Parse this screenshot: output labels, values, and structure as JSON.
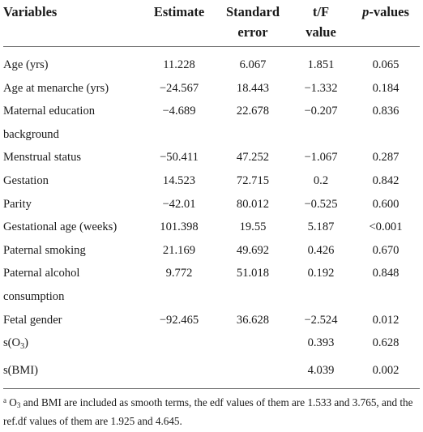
{
  "header": {
    "variables": "Variables",
    "estimate": "Estimate",
    "se_line1": "Standard",
    "se_line2": "error",
    "tf_line1": "t/F",
    "tf_line2": "value",
    "p_italic": "p",
    "p_rest": "-values"
  },
  "rows": [
    {
      "variable": "Age (yrs)",
      "estimate": "11.228",
      "se": "6.067",
      "tf": "1.851",
      "p": "0.065"
    },
    {
      "variable": "Age at menarche (yrs)",
      "estimate": "−24.567",
      "se": "18.443",
      "tf": "−1.332",
      "p": "0.184"
    },
    {
      "variable": "Maternal education",
      "variable_line2": "background",
      "estimate": "−4.689",
      "se": "22.678",
      "tf": "−0.207",
      "p": "0.836"
    },
    {
      "variable": "Menstrual status",
      "estimate": "−50.411",
      "se": "47.252",
      "tf": "−1.067",
      "p": "0.287"
    },
    {
      "variable": "Gestation",
      "estimate": "14.523",
      "se": "72.715",
      "tf": "0.2",
      "p": "0.842"
    },
    {
      "variable": "Parity",
      "estimate": "−42.01",
      "se": "80.012",
      "tf": "−0.525",
      "p": "0.600"
    },
    {
      "variable": "Gestational age (weeks)",
      "estimate": "101.398",
      "se": "19.55",
      "tf": "5.187",
      "p": "<0.001"
    },
    {
      "variable": "Paternal smoking",
      "estimate": "21.169",
      "se": "49.692",
      "tf": "0.426",
      "p": "0.670"
    },
    {
      "variable": "Paternal alcohol",
      "variable_line2": "consumption",
      "estimate": "9.772",
      "se": "51.018",
      "tf": "0.192",
      "p": "0.848"
    },
    {
      "variable": "Fetal gender",
      "estimate": "−92.465",
      "se": "36.628",
      "tf": "−2.524",
      "p": "0.012"
    },
    {
      "variable_prefix": "s(O",
      "variable_sub": "3",
      "variable_suffix": ")",
      "estimate": "",
      "se": "",
      "tf": "0.393",
      "p": "0.628"
    },
    {
      "variable": "s(BMI)",
      "estimate": "",
      "se": "",
      "tf": "4.039",
      "p": "0.002"
    }
  ],
  "footnote": {
    "marker": "a",
    "o": "O",
    "o_sub": "3",
    "text": " and BMI are included as smooth terms, the edf values of them are 1.533 and 3.765, and the ref.df values of them are 1.925 and 4.645."
  }
}
